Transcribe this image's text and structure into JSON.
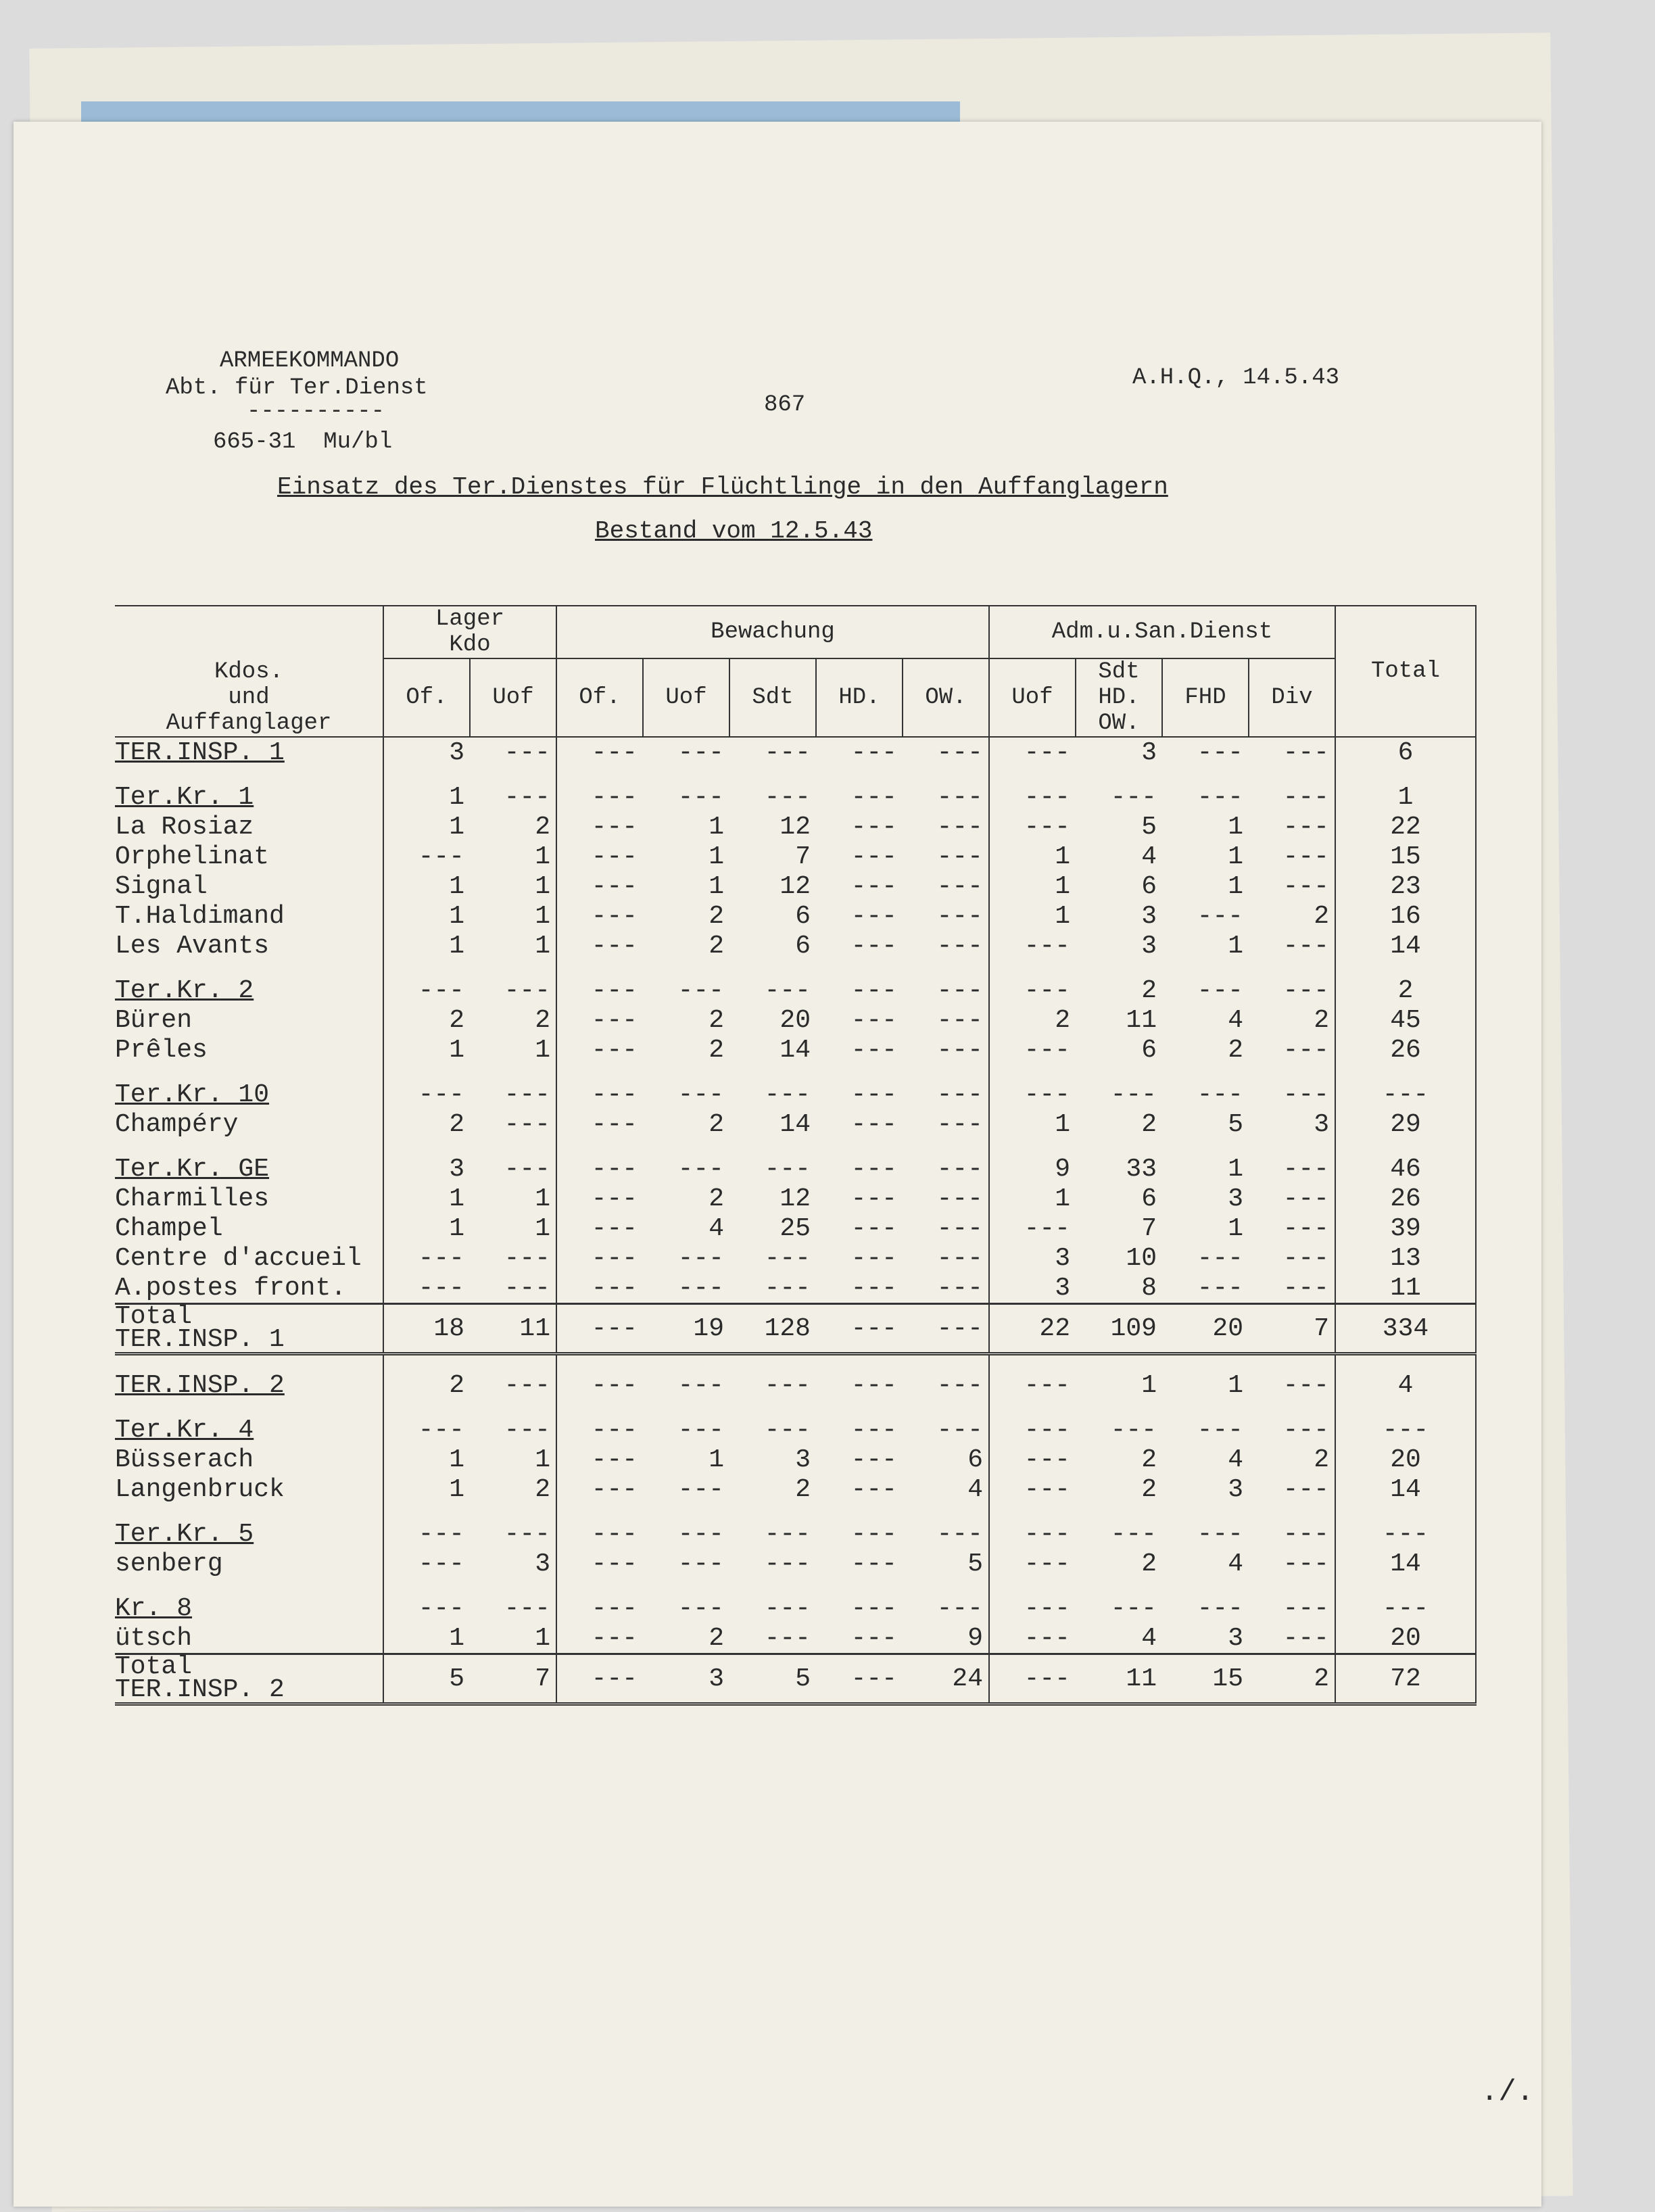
{
  "header": {
    "org": "ARMEEKOMMANDO",
    "dept": "Abt. für Ter.Dienst",
    "rule": "----------",
    "ref": "665-31  Mu/bl",
    "page_number": "867",
    "place_date": "A.H.Q., 14.5.43"
  },
  "title": "Einsatz des Ter.Dienstes für Flüchtlinge in den Auffanglagern",
  "subtitle": "Bestand vom 12.5.43",
  "table": {
    "row_header": "Kdos.\nund\nAuffanglager",
    "groups": [
      "Lager\nKdo",
      "Bewachung",
      "Adm.u.San.Dienst",
      "Total"
    ],
    "columns": [
      "Of.",
      "Uof",
      "Of.",
      "Uof",
      "Sdt",
      "HD.",
      "OW.",
      "Uof",
      "Sdt\nHD.\nOW.",
      "FHD",
      "Div"
    ],
    "rows": [
      {
        "name": "TER.INSP. 1",
        "u": true,
        "gap": false,
        "v": [
          "3",
          "---",
          "---",
          "---",
          "---",
          "---",
          "---",
          "---",
          "3",
          "---",
          "---",
          "6"
        ]
      },
      {
        "name": "Ter.Kr. 1",
        "u": true,
        "gap": true,
        "v": [
          "1",
          "---",
          "---",
          "---",
          "---",
          "---",
          "---",
          "---",
          "---",
          "---",
          "---",
          "1"
        ]
      },
      {
        "name": "La Rosiaz",
        "v": [
          "1",
          "2",
          "---",
          "1",
          "12",
          "---",
          "---",
          "---",
          "5",
          "1",
          "---",
          "22"
        ]
      },
      {
        "name": "Orphelinat",
        "v": [
          "---",
          "1",
          "---",
          "1",
          "7",
          "---",
          "---",
          "1",
          "4",
          "1",
          "---",
          "15"
        ]
      },
      {
        "name": "Signal",
        "v": [
          "1",
          "1",
          "---",
          "1",
          "12",
          "---",
          "---",
          "1",
          "6",
          "1",
          "---",
          "23"
        ]
      },
      {
        "name": "T.Haldimand",
        "v": [
          "1",
          "1",
          "---",
          "2",
          "6",
          "---",
          "---",
          "1",
          "3",
          "---",
          "2",
          "16"
        ]
      },
      {
        "name": "Les Avants",
        "v": [
          "1",
          "1",
          "---",
          "2",
          "6",
          "---",
          "---",
          "---",
          "3",
          "1",
          "---",
          "14"
        ]
      },
      {
        "name": "Ter.Kr. 2",
        "u": true,
        "gap": true,
        "v": [
          "---",
          "---",
          "---",
          "---",
          "---",
          "---",
          "---",
          "---",
          "2",
          "---",
          "---",
          "2"
        ]
      },
      {
        "name": "Büren",
        "v": [
          "2",
          "2",
          "---",
          "2",
          "20",
          "---",
          "---",
          "2",
          "11",
          "4",
          "2",
          "45"
        ]
      },
      {
        "name": "Prêles",
        "v": [
          "1",
          "1",
          "---",
          "2",
          "14",
          "---",
          "---",
          "---",
          "6",
          "2",
          "---",
          "26"
        ]
      },
      {
        "name": "Ter.Kr. 10",
        "u": true,
        "gap": true,
        "v": [
          "---",
          "---",
          "---",
          "---",
          "---",
          "---",
          "---",
          "---",
          "---",
          "---",
          "---",
          "---"
        ]
      },
      {
        "name": "Champéry",
        "v": [
          "2",
          "---",
          "---",
          "2",
          "14",
          "---",
          "---",
          "1",
          "2",
          "5",
          "3",
          "29"
        ]
      },
      {
        "name": "Ter.Kr. GE",
        "u": true,
        "gap": true,
        "v": [
          "3",
          "---",
          "---",
          "---",
          "---",
          "---",
          "---",
          "9",
          "33",
          "1",
          "---",
          "46"
        ]
      },
      {
        "name": "Charmilles",
        "v": [
          "1",
          "1",
          "---",
          "2",
          "12",
          "---",
          "---",
          "1",
          "6",
          "3",
          "---",
          "26"
        ]
      },
      {
        "name": "Champel",
        "v": [
          "1",
          "1",
          "---",
          "4",
          "25",
          "---",
          "---",
          "---",
          "7",
          "1",
          "---",
          "39"
        ]
      },
      {
        "name": "Centre d'accueil",
        "v": [
          "---",
          "---",
          "---",
          "---",
          "---",
          "---",
          "---",
          "3",
          "10",
          "---",
          "---",
          "13"
        ]
      },
      {
        "name": "A.postes front.",
        "v": [
          "---",
          "---",
          "---",
          "---",
          "---",
          "---",
          "---",
          "3",
          "8",
          "---",
          "---",
          "11"
        ]
      },
      {
        "name": "Total\nTER.INSP. 1",
        "total": true,
        "dbl": true,
        "v": [
          "18",
          "11",
          "---",
          "19",
          "128",
          "---",
          "---",
          "22",
          "109",
          "20",
          "7",
          "334"
        ]
      },
      {
        "name": "TER.INSP. 2",
        "u": true,
        "gap": true,
        "v": [
          "2",
          "---",
          "---",
          "---",
          "---",
          "---",
          "---",
          "---",
          "1",
          "1",
          "---",
          "4"
        ]
      },
      {
        "name": "Ter.Kr. 4",
        "u": true,
        "gap": true,
        "v": [
          "---",
          "---",
          "---",
          "---",
          "---",
          "---",
          "---",
          "---",
          "---",
          "---",
          "---",
          "---"
        ]
      },
      {
        "name": "Büsserach",
        "v": [
          "1",
          "1",
          "---",
          "1",
          "3",
          "---",
          "6",
          "---",
          "2",
          "4",
          "2",
          "20"
        ]
      },
      {
        "name": "Langenbruck",
        "v": [
          "1",
          "2",
          "---",
          "---",
          "2",
          "---",
          "4",
          "---",
          "2",
          "3",
          "---",
          "14"
        ]
      },
      {
        "name": "Ter.Kr. 5",
        "u": true,
        "gap": true,
        "v": [
          "---",
          "---",
          "---",
          "---",
          "---",
          "---",
          "---",
          "---",
          "---",
          "---",
          "---",
          "---"
        ]
      },
      {
        "name": "senberg",
        "v": [
          "---",
          "3",
          "---",
          "---",
          "---",
          "---",
          "5",
          "---",
          "2",
          "4",
          "---",
          "14"
        ]
      },
      {
        "name": "Kr. 8",
        "u": true,
        "gap": true,
        "v": [
          "---",
          "---",
          "---",
          "---",
          "---",
          "---",
          "---",
          "---",
          "---",
          "---",
          "---",
          "---"
        ]
      },
      {
        "name": "ütsch",
        "v": [
          "1",
          "1",
          "---",
          "2",
          "---",
          "---",
          "9",
          "---",
          "4",
          "3",
          "---",
          "20"
        ]
      },
      {
        "name": "Total\nTER.INSP. 2",
        "total": true,
        "dbl": true,
        "v": [
          "5",
          "7",
          "---",
          "3",
          "5",
          "---",
          "24",
          "---",
          "11",
          "15",
          "2",
          "72"
        ]
      }
    ]
  },
  "footer": {
    "continued_mark": "./."
  }
}
